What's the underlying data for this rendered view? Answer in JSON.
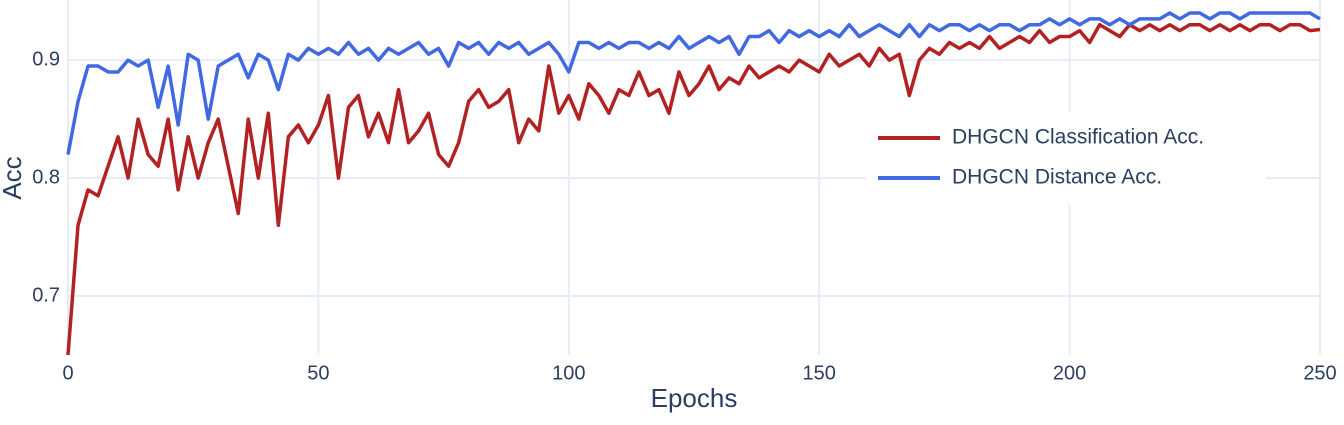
{
  "chart_data": {
    "type": "line",
    "x_label": "Epochs",
    "y_label": "Acc",
    "xlim": [
      0,
      250
    ],
    "xticks": [
      0,
      50,
      100,
      150,
      200,
      250
    ],
    "ylim": [
      0.65,
      0.951
    ],
    "yticks": [
      0.7,
      0.8,
      0.9
    ],
    "grid": true,
    "legend": "right",
    "x": [
      0,
      2,
      4,
      6,
      8,
      10,
      12,
      14,
      16,
      18,
      20,
      22,
      24,
      26,
      28,
      30,
      32,
      34,
      36,
      38,
      40,
      42,
      44,
      46,
      48,
      50,
      52,
      54,
      56,
      58,
      60,
      62,
      64,
      66,
      68,
      70,
      72,
      74,
      76,
      78,
      80,
      82,
      84,
      86,
      88,
      90,
      92,
      94,
      96,
      98,
      100,
      102,
      104,
      106,
      108,
      110,
      112,
      114,
      116,
      118,
      120,
      122,
      124,
      126,
      128,
      130,
      132,
      134,
      136,
      138,
      140,
      142,
      144,
      146,
      148,
      150,
      152,
      154,
      156,
      158,
      160,
      162,
      164,
      166,
      168,
      170,
      172,
      174,
      176,
      178,
      180,
      182,
      184,
      186,
      188,
      190,
      192,
      194,
      196,
      198,
      200,
      202,
      204,
      206,
      208,
      210,
      212,
      214,
      216,
      218,
      220,
      222,
      224,
      226,
      228,
      230,
      232,
      234,
      236,
      238,
      240,
      242,
      244,
      246,
      248,
      250
    ],
    "series": [
      {
        "name": "DHGCN Classification Acc.",
        "color": "#b22222",
        "values": [
          0.65,
          0.76,
          0.79,
          0.785,
          0.81,
          0.835,
          0.8,
          0.85,
          0.82,
          0.81,
          0.85,
          0.79,
          0.835,
          0.8,
          0.83,
          0.85,
          0.81,
          0.77,
          0.85,
          0.8,
          0.855,
          0.76,
          0.835,
          0.845,
          0.83,
          0.845,
          0.87,
          0.8,
          0.86,
          0.87,
          0.835,
          0.855,
          0.83,
          0.875,
          0.83,
          0.84,
          0.855,
          0.82,
          0.81,
          0.83,
          0.865,
          0.875,
          0.86,
          0.865,
          0.875,
          0.83,
          0.85,
          0.84,
          0.895,
          0.855,
          0.87,
          0.85,
          0.88,
          0.87,
          0.855,
          0.875,
          0.87,
          0.89,
          0.87,
          0.875,
          0.855,
          0.89,
          0.87,
          0.88,
          0.895,
          0.875,
          0.885,
          0.88,
          0.895,
          0.885,
          0.89,
          0.895,
          0.89,
          0.9,
          0.895,
          0.89,
          0.905,
          0.895,
          0.9,
          0.905,
          0.895,
          0.91,
          0.9,
          0.905,
          0.87,
          0.9,
          0.91,
          0.905,
          0.915,
          0.91,
          0.915,
          0.91,
          0.92,
          0.91,
          0.915,
          0.92,
          0.915,
          0.925,
          0.915,
          0.92,
          0.92,
          0.925,
          0.915,
          0.93,
          0.925,
          0.92,
          0.93,
          0.925,
          0.93,
          0.925,
          0.93,
          0.925,
          0.93,
          0.93,
          0.925,
          0.93,
          0.925,
          0.93,
          0.925,
          0.93,
          0.93,
          0.925,
          0.93,
          0.93,
          0.925,
          0.926
        ]
      },
      {
        "name": "DHGCN Distance Acc.",
        "color": "#4169e1",
        "values": [
          0.82,
          0.865,
          0.895,
          0.895,
          0.89,
          0.89,
          0.9,
          0.895,
          0.9,
          0.86,
          0.895,
          0.845,
          0.905,
          0.9,
          0.85,
          0.895,
          0.9,
          0.905,
          0.885,
          0.905,
          0.9,
          0.875,
          0.905,
          0.9,
          0.91,
          0.905,
          0.91,
          0.905,
          0.915,
          0.905,
          0.91,
          0.9,
          0.91,
          0.905,
          0.91,
          0.915,
          0.905,
          0.91,
          0.895,
          0.915,
          0.91,
          0.915,
          0.905,
          0.915,
          0.91,
          0.915,
          0.905,
          0.91,
          0.915,
          0.905,
          0.89,
          0.915,
          0.915,
          0.91,
          0.915,
          0.91,
          0.915,
          0.915,
          0.91,
          0.915,
          0.91,
          0.92,
          0.91,
          0.915,
          0.92,
          0.915,
          0.92,
          0.905,
          0.92,
          0.92,
          0.925,
          0.915,
          0.925,
          0.92,
          0.925,
          0.92,
          0.925,
          0.92,
          0.93,
          0.92,
          0.925,
          0.93,
          0.925,
          0.92,
          0.93,
          0.92,
          0.93,
          0.925,
          0.93,
          0.93,
          0.925,
          0.93,
          0.925,
          0.93,
          0.93,
          0.925,
          0.93,
          0.93,
          0.935,
          0.93,
          0.935,
          0.93,
          0.935,
          0.935,
          0.93,
          0.935,
          0.93,
          0.935,
          0.935,
          0.935,
          0.94,
          0.935,
          0.94,
          0.94,
          0.935,
          0.94,
          0.94,
          0.935,
          0.94,
          0.94,
          0.94,
          0.94,
          0.94,
          0.94,
          0.94,
          0.935
        ]
      }
    ]
  }
}
